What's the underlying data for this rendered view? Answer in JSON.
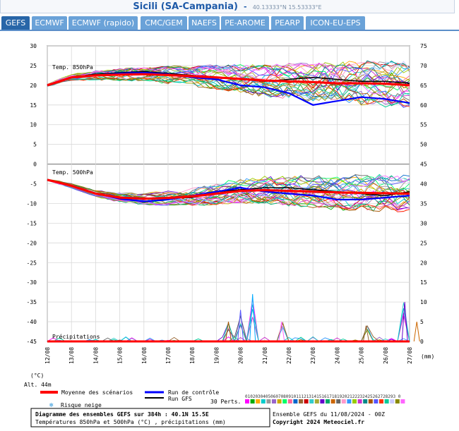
{
  "header": {
    "title": "Sicili (SA-Campania)",
    "separator": "-",
    "coords": "40.13333°N 15.53333°E"
  },
  "tabs": [
    {
      "label": "GEFS",
      "active": true
    },
    {
      "label": "ECMWF",
      "active": false
    },
    {
      "label": "ECMWF (rapido)",
      "active": false
    },
    {
      "label": "CMC/GEM",
      "active": false
    },
    {
      "label": "NAEFS",
      "active": false
    },
    {
      "label": "PE-AROME",
      "active": false
    },
    {
      "label": "PEARP",
      "active": false
    },
    {
      "label": "ICON-EU-EPS",
      "active": false
    }
  ],
  "colors": {
    "tab_active": "#2866a8",
    "tab_inactive": "#6aa2d8",
    "mean": "#ff0000",
    "control": "#0000ff",
    "gfs": "#000000",
    "title": "#1e5aa8"
  },
  "chart_data": {
    "type": "line",
    "left_axis_unit": "(°C)",
    "right_axis_unit": "(mm)",
    "alt_label": "Alt. 44m",
    "left_ticks": [
      30,
      25,
      20,
      15,
      10,
      5,
      0,
      -5,
      -10,
      -15,
      -20,
      -25,
      -30,
      -35,
      -40,
      -45
    ],
    "right_ticks": [
      75,
      70,
      65,
      60,
      55,
      50,
      45,
      40,
      35,
      30,
      25,
      20,
      15,
      10,
      5,
      0
    ],
    "ylim": [
      -45,
      30
    ],
    "x_labels": [
      "12/08",
      "13/08",
      "14/08",
      "15/08",
      "16/08",
      "17/08",
      "18/08",
      "19/08",
      "20/08",
      "21/08",
      "22/08",
      "23/08",
      "24/08",
      "25/08",
      "26/08",
      "27/08"
    ],
    "panels": [
      {
        "name": "Temp. 850hPa",
        "mean": [
          20,
          22,
          22.5,
          22.7,
          22.8,
          22.6,
          22.3,
          22,
          21.6,
          21.2,
          21,
          20.8,
          20.5,
          20.5,
          20.4,
          20
        ],
        "control": [
          20,
          22,
          22.5,
          23,
          23.2,
          22.8,
          22,
          21.5,
          20,
          19.5,
          18,
          15,
          16,
          17,
          16.5,
          15.5
        ],
        "gfs": [
          20,
          22,
          22.8,
          23.2,
          23.5,
          23,
          22.5,
          22,
          21.5,
          21,
          21.5,
          22,
          21.5,
          21,
          21,
          20.5
        ],
        "spread": [
          0.5,
          0.7,
          1,
          1.3,
          1.5,
          1.9,
          2.3,
          2.7,
          3.1,
          3.5,
          3.9,
          4.3,
          4.6,
          4.8,
          5,
          5
        ]
      },
      {
        "name": "Temp. 500hPa",
        "mean": [
          -4,
          -5.5,
          -7.5,
          -8.5,
          -8.8,
          -8.6,
          -8.2,
          -7.5,
          -6.8,
          -6.6,
          -6.8,
          -7,
          -7.2,
          -7.3,
          -7.4,
          -7.5
        ],
        "control": [
          -4,
          -5.5,
          -7.5,
          -8.8,
          -9.5,
          -9,
          -8,
          -7,
          -6,
          -7,
          -7.5,
          -8,
          -9,
          -9,
          -8.5,
          -8
        ],
        "gfs": [
          -4,
          -5.5,
          -7.5,
          -8.6,
          -8.8,
          -8.6,
          -8.5,
          -7,
          -6.5,
          -6,
          -6,
          -6.5,
          -7,
          -7.5,
          -8,
          -7
        ],
        "spread": [
          0.3,
          0.5,
          0.7,
          1,
          1.3,
          1.6,
          2,
          2.4,
          2.7,
          3,
          3.3,
          3.5,
          3.7,
          3.9,
          4,
          4
        ]
      },
      {
        "name": "Précipitations",
        "spikes": [
          {
            "day": 7.5,
            "value": 5
          },
          {
            "day": 8.0,
            "value": 8
          },
          {
            "day": 8.5,
            "value": 12
          },
          {
            "day": 9.7,
            "value": 5
          },
          {
            "day": 13.2,
            "value": 4
          },
          {
            "day": 14.8,
            "value": 10
          },
          {
            "day": 15.3,
            "value": 5
          }
        ]
      }
    ],
    "ensemble_count": 30
  },
  "legend": {
    "mean": "Moyenne des scénarios",
    "control": "Run de contrôle",
    "gfs": "Run GFS",
    "perts": "30 Perts.",
    "snow": "Risque neige",
    "pert_numbers": "01020304050607080910111213141516171819202122232425262728293 0"
  },
  "footer": {
    "diagram": "Diagramme des ensembles GEFS sur 384h : 40.1N 15.5E",
    "subtitle": "Températures 850hPa et 500hPa (°C) , précipitations (mm)",
    "run": "Ensemble GEFS du 11/08/2024 - 00Z",
    "copyright": "Copyright 2024 Meteociel.fr"
  }
}
